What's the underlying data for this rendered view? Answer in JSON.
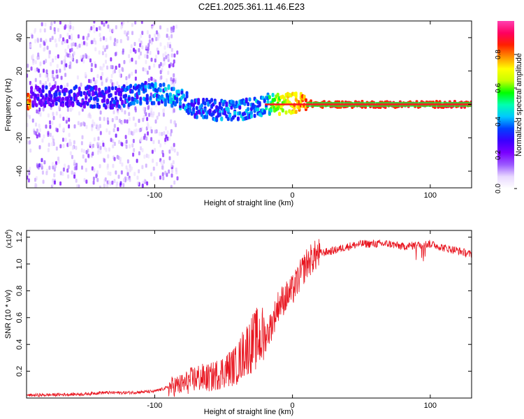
{
  "title": "C2E1.2025.361.11.46.E23",
  "chart_data": [
    {
      "type": "heatmap",
      "xlabel": "Height of straight line (km)",
      "ylabel": "Frequency (Hz)",
      "xlim": [
        -193,
        130
      ],
      "ylim": [
        -50,
        50
      ],
      "xticks": [
        -100,
        0,
        100
      ],
      "yticks": [
        -40,
        -20,
        0,
        20,
        40
      ],
      "colorbar": {
        "label": "Normalized spectral amplitude",
        "range": [
          0,
          1
        ],
        "ticks": [
          0.0,
          0.2,
          0.4,
          0.6,
          0.8
        ],
        "colormap": [
          "#ffffff",
          "#e8d8ff",
          "#9b59ff",
          "#7a00ff",
          "#3a00ff",
          "#0040ff",
          "#00c8ff",
          "#00ffb0",
          "#00ff00",
          "#c8ff00",
          "#ffff00",
          "#ff9000",
          "#ff2000",
          "#ff0060",
          "#ff40b0"
        ]
      },
      "features": {
        "scatter_region_km": [
          -193,
          -83
        ],
        "scatter_freq_spread_hz": 50,
        "ridge_points": [
          {
            "x": -190,
            "f": 5,
            "amp": 0.33
          },
          {
            "x": -160,
            "f": 5,
            "amp": 0.36
          },
          {
            "x": -130,
            "f": 4,
            "amp": 0.38
          },
          {
            "x": -105,
            "f": 7,
            "amp": 0.45
          },
          {
            "x": -85,
            "f": 5,
            "amp": 0.48
          },
          {
            "x": -70,
            "f": -2,
            "amp": 0.42
          },
          {
            "x": -50,
            "f": -4,
            "amp": 0.45
          },
          {
            "x": -35,
            "f": -3,
            "amp": 0.45
          },
          {
            "x": -20,
            "f": 0,
            "amp": 0.5
          },
          {
            "x": -10,
            "f": 0,
            "amp": 0.72
          },
          {
            "x": 0,
            "f": 1,
            "amp": 0.85
          },
          {
            "x": 20,
            "f": 0,
            "amp": 0.88
          },
          {
            "x": 60,
            "f": 0,
            "amp": 0.9
          },
          {
            "x": 100,
            "f": 0,
            "amp": 0.9
          },
          {
            "x": 130,
            "f": 0,
            "amp": 0.9
          }
        ]
      }
    },
    {
      "type": "line",
      "xlabel": "Height of straight line (km)",
      "ylabel": "SNR (10 * v/v)",
      "y_multiplier": "(x10",
      "y_multiplier_exp": "4",
      "y_multiplier_close": ")",
      "xlim": [
        -193,
        130
      ],
      "ylim": [
        0,
        1.25
      ],
      "xticks": [
        -100,
        0,
        100
      ],
      "yticks": [
        0.2,
        0.4,
        0.6,
        0.8,
        1.0,
        1.2
      ],
      "ytick_labels": [
        "0.2",
        "0.4",
        "0.6",
        "0.8",
        "1.0",
        "1.2"
      ],
      "color": "#e8141e",
      "series": [
        {
          "name": "SNR",
          "x": [
            -193,
            -170,
            -150,
            -140,
            -120,
            -100,
            -90,
            -80,
            -70,
            -60,
            -50,
            -40,
            -35,
            -30,
            -25,
            -20,
            -15,
            -10,
            -5,
            0,
            5,
            10,
            15,
            20,
            30,
            40,
            50,
            60,
            70,
            80,
            90,
            100,
            110,
            120,
            130
          ],
          "y": [
            0.02,
            0.025,
            0.03,
            0.04,
            0.04,
            0.05,
            0.08,
            0.1,
            0.15,
            0.15,
            0.2,
            0.25,
            0.35,
            0.4,
            0.45,
            0.45,
            0.55,
            0.7,
            0.75,
            0.8,
            0.9,
            1.0,
            1.05,
            1.08,
            1.1,
            1.13,
            1.15,
            1.15,
            1.15,
            1.13,
            1.14,
            1.15,
            1.12,
            1.1,
            1.07
          ]
        }
      ]
    }
  ]
}
